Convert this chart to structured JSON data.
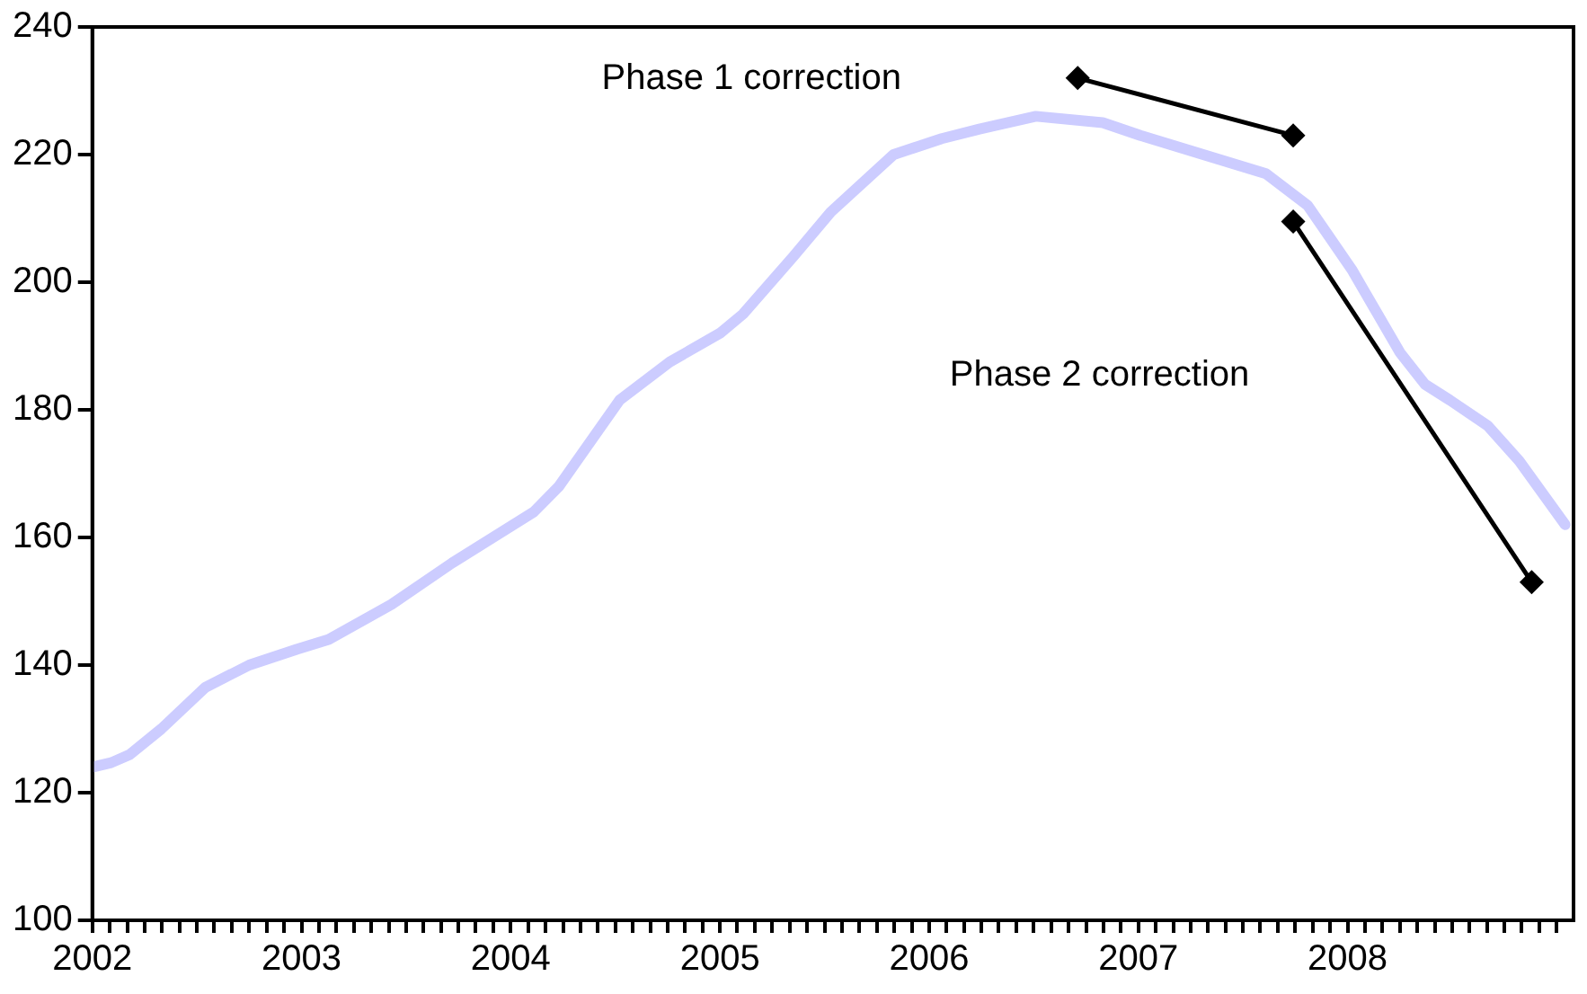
{
  "chart_data": {
    "type": "line",
    "xlim": [
      2002,
      2009.08
    ],
    "ylim": [
      100,
      240
    ],
    "yticks": [
      100,
      120,
      140,
      160,
      180,
      200,
      220,
      240
    ],
    "xticks": [
      2002,
      {
        "value": 2002.083,
        "label": null
      },
      {
        "value": 2002.167,
        "label": null
      },
      {
        "value": 2002.25,
        "label": null
      },
      {
        "value": 2002.333,
        "label": null
      },
      {
        "value": 2002.417,
        "label": null
      },
      {
        "value": 2002.5,
        "label": null
      },
      {
        "value": 2002.583,
        "label": null
      },
      {
        "value": 2002.667,
        "label": null
      },
      {
        "value": 2002.75,
        "label": null
      },
      {
        "value": 2002.833,
        "label": null
      },
      {
        "value": 2002.917,
        "label": null
      },
      2003,
      {
        "value": 2003.083,
        "label": null
      },
      {
        "value": 2003.167,
        "label": null
      },
      {
        "value": 2003.25,
        "label": null
      },
      {
        "value": 2003.333,
        "label": null
      },
      {
        "value": 2003.417,
        "label": null
      },
      {
        "value": 2003.5,
        "label": null
      },
      {
        "value": 2003.583,
        "label": null
      },
      {
        "value": 2003.667,
        "label": null
      },
      {
        "value": 2003.75,
        "label": null
      },
      {
        "value": 2003.833,
        "label": null
      },
      {
        "value": 2003.917,
        "label": null
      },
      2004,
      {
        "value": 2004.083,
        "label": null
      },
      {
        "value": 2004.167,
        "label": null
      },
      {
        "value": 2004.25,
        "label": null
      },
      {
        "value": 2004.333,
        "label": null
      },
      {
        "value": 2004.417,
        "label": null
      },
      {
        "value": 2004.5,
        "label": null
      },
      {
        "value": 2004.583,
        "label": null
      },
      {
        "value": 2004.667,
        "label": null
      },
      {
        "value": 2004.75,
        "label": null
      },
      {
        "value": 2004.833,
        "label": null
      },
      {
        "value": 2004.917,
        "label": null
      },
      2005,
      {
        "value": 2005.083,
        "label": null
      },
      {
        "value": 2005.167,
        "label": null
      },
      {
        "value": 2005.25,
        "label": null
      },
      {
        "value": 2005.333,
        "label": null
      },
      {
        "value": 2005.417,
        "label": null
      },
      {
        "value": 2005.5,
        "label": null
      },
      {
        "value": 2005.583,
        "label": null
      },
      {
        "value": 2005.667,
        "label": null
      },
      {
        "value": 2005.75,
        "label": null
      },
      {
        "value": 2005.833,
        "label": null
      },
      {
        "value": 2005.917,
        "label": null
      },
      2006,
      {
        "value": 2006.083,
        "label": null
      },
      {
        "value": 2006.167,
        "label": null
      },
      {
        "value": 2006.25,
        "label": null
      },
      {
        "value": 2006.333,
        "label": null
      },
      {
        "value": 2006.417,
        "label": null
      },
      {
        "value": 2006.5,
        "label": null
      },
      {
        "value": 2006.583,
        "label": null
      },
      {
        "value": 2006.667,
        "label": null
      },
      {
        "value": 2006.75,
        "label": null
      },
      {
        "value": 2006.833,
        "label": null
      },
      {
        "value": 2006.917,
        "label": null
      },
      2007,
      {
        "value": 2007.083,
        "label": null
      },
      {
        "value": 2007.167,
        "label": null
      },
      {
        "value": 2007.25,
        "label": null
      },
      {
        "value": 2007.333,
        "label": null
      },
      {
        "value": 2007.417,
        "label": null
      },
      {
        "value": 2007.5,
        "label": null
      },
      {
        "value": 2007.583,
        "label": null
      },
      {
        "value": 2007.667,
        "label": null
      },
      {
        "value": 2007.75,
        "label": null
      },
      {
        "value": 2007.833,
        "label": null
      },
      {
        "value": 2007.917,
        "label": null
      },
      2008,
      {
        "value": 2008.083,
        "label": null
      },
      {
        "value": 2008.167,
        "label": null
      },
      {
        "value": 2008.25,
        "label": null
      },
      {
        "value": 2008.333,
        "label": null
      },
      {
        "value": 2008.417,
        "label": null
      },
      {
        "value": 2008.5,
        "label": null
      },
      {
        "value": 2008.583,
        "label": null
      },
      {
        "value": 2008.667,
        "label": null
      },
      {
        "value": 2008.75,
        "label": null
      },
      {
        "value": 2008.833,
        "label": null
      },
      {
        "value": 2008.917,
        "label": null
      },
      {
        "value": 2009,
        "label": null
      }
    ],
    "grid": false,
    "legend": false,
    "series": [
      {
        "color": "#ccccff",
        "marker": "none",
        "x": [
          2002.0,
          2002.09,
          2002.18,
          2002.33,
          2002.54,
          2002.75,
          2002.98,
          2003.13,
          2003.43,
          2003.72,
          2004.11,
          2004.23,
          2004.52,
          2004.76,
          2005.0,
          2005.11,
          2005.35,
          2005.53,
          2005.83,
          2006.06,
          2006.24,
          2006.51,
          2006.83,
          2007.01,
          2007.31,
          2007.61,
          2007.81,
          2008.02,
          2008.25,
          2008.37,
          2008.49,
          2008.67,
          2008.82,
          2009.04
        ],
        "values": [
          124,
          124.7,
          126,
          130,
          136.5,
          140,
          142.5,
          144,
          149.5,
          156,
          164,
          168,
          181.5,
          187.5,
          192,
          195,
          204,
          211,
          220,
          222.5,
          224,
          226,
          225,
          223,
          220,
          217,
          212,
          202,
          189,
          184,
          181.5,
          177.5,
          172,
          162
        ]
      },
      {
        "color": "#000000",
        "marker": "diamond",
        "x": [
          2006.71,
          2007.74
        ],
        "values": [
          232,
          223
        ]
      },
      {
        "color": "#000000",
        "marker": "diamond",
        "x": [
          2007.74,
          2008.88
        ],
        "values": [
          209.5,
          153
        ]
      }
    ],
    "annotations": [
      "Phase 1 correction",
      "Phase 2 correction"
    ]
  }
}
